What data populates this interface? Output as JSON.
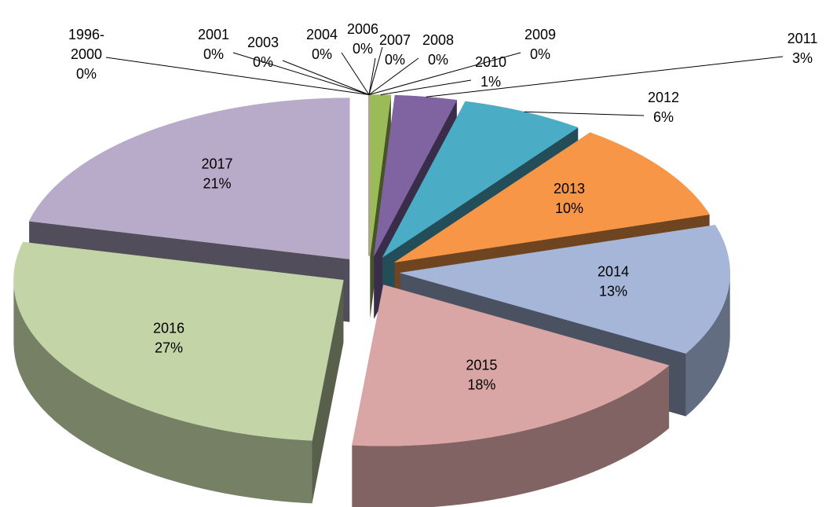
{
  "chart_data": {
    "type": "pie3d",
    "categories": [
      "1996-2000",
      "2001",
      "2003",
      "2004",
      "2006",
      "2007",
      "2008",
      "2009",
      "2010",
      "2011",
      "2012",
      "2013",
      "2014",
      "2015",
      "2016",
      "2017"
    ],
    "values": [
      0,
      0,
      0,
      0,
      0,
      0,
      0,
      0,
      1,
      3,
      6,
      10,
      13,
      18,
      27,
      21
    ],
    "value_labels": [
      "0%",
      "0%",
      "0%",
      "0%",
      "0%",
      "0%",
      "0%",
      "0%",
      "1%",
      "3%",
      "6%",
      "10%",
      "13%",
      "18%",
      "27%",
      "21%"
    ],
    "colors": [
      "#4f81bd",
      "#c0504d",
      "#9bbb59",
      "#8064a2",
      "#4bacc6",
      "#f79646",
      "#2c4d75",
      "#772c2a",
      "#9bbb59",
      "#8064a2",
      "#4bacc6",
      "#f79646",
      "#a5b6d9",
      "#d9a5a5",
      "#c3d5a7",
      "#b7abc9"
    ]
  }
}
